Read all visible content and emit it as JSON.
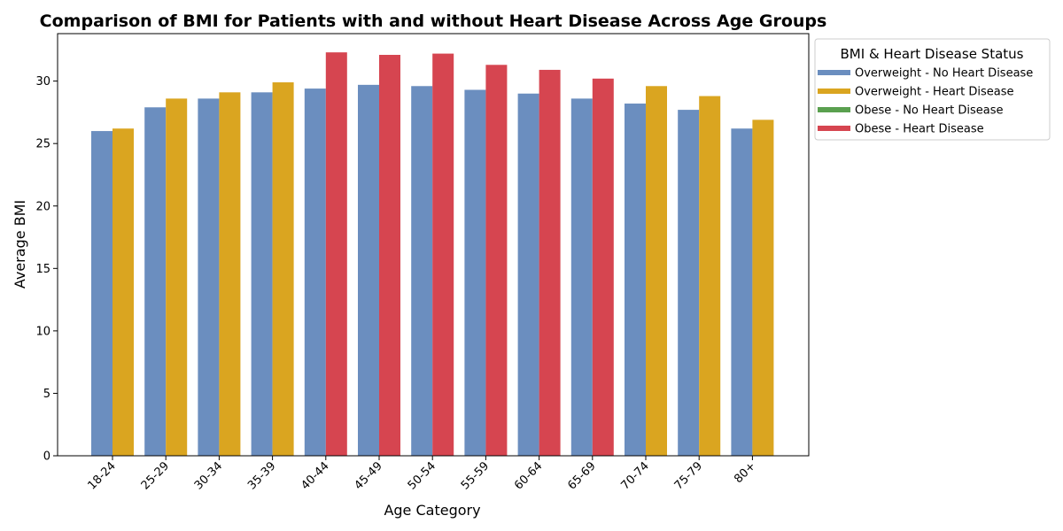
{
  "chart_data": {
    "type": "bar",
    "title": "Comparison of BMI for Patients with and without Heart Disease Across Age Groups",
    "xlabel": "Age Category",
    "ylabel": "Average BMI",
    "ylim": [
      0,
      33.8
    ],
    "yticks": [
      0,
      5,
      10,
      15,
      20,
      25,
      30
    ],
    "grid": false,
    "legend_title": "BMI & Heart Disease Status",
    "legend_placement": "outside-top-right",
    "categories": [
      "18-24",
      "25-29",
      "30-34",
      "35-39",
      "40-44",
      "45-49",
      "50-54",
      "55-59",
      "60-64",
      "65-69",
      "70-74",
      "75-79",
      "80+"
    ],
    "legend": [
      {
        "name": "Overweight - No Heart Disease",
        "color": "#6b8ebf"
      },
      {
        "name": "Overweight - Heart Disease",
        "color": "#daa520"
      },
      {
        "name": "Obese - No Heart Disease",
        "color": "#5aa04f"
      },
      {
        "name": "Obese - Heart Disease",
        "color": "#d64550"
      }
    ],
    "series": [
      {
        "name": "No Heart Disease",
        "values": [
          26.0,
          27.9,
          28.6,
          29.1,
          29.4,
          29.7,
          29.6,
          29.3,
          29.0,
          28.6,
          28.2,
          27.7,
          26.2
        ],
        "colors": [
          "#6b8ebf",
          "#6b8ebf",
          "#6b8ebf",
          "#6b8ebf",
          "#6b8ebf",
          "#6b8ebf",
          "#6b8ebf",
          "#6b8ebf",
          "#6b8ebf",
          "#6b8ebf",
          "#6b8ebf",
          "#6b8ebf",
          "#6b8ebf"
        ]
      },
      {
        "name": "Heart Disease",
        "values": [
          26.2,
          28.6,
          29.1,
          29.9,
          32.3,
          32.1,
          32.2,
          31.3,
          30.9,
          30.2,
          29.6,
          28.8,
          26.9
        ],
        "colors": [
          "#daa520",
          "#daa520",
          "#daa520",
          "#daa520",
          "#d64550",
          "#d64550",
          "#d64550",
          "#d64550",
          "#d64550",
          "#d64550",
          "#daa520",
          "#daa520",
          "#daa520"
        ]
      }
    ]
  }
}
